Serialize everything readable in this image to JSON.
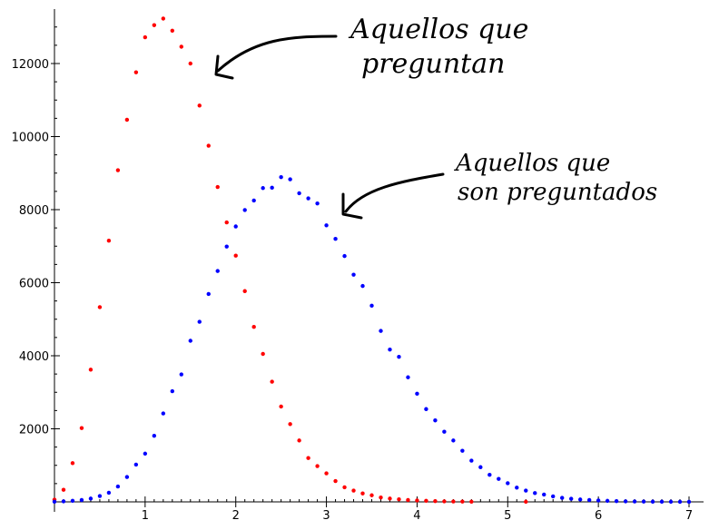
{
  "chart_data": {
    "type": "scatter",
    "title": "",
    "xlabel": "",
    "ylabel": "",
    "xlim": [
      -0.05,
      7.05
    ],
    "ylim": [
      0,
      13500
    ],
    "xticks": [
      "1",
      "2",
      "3",
      "4",
      "5",
      "6",
      "7"
    ],
    "yticks": [
      "2000",
      "4000",
      "6000",
      "8000",
      "10000",
      "12000"
    ],
    "grid": false,
    "series": [
      {
        "color": "#ff0000",
        "x": [
          0,
          0.1,
          0.2,
          0.3,
          0.4,
          0.5,
          0.6,
          0.7,
          0.8,
          0.9,
          1.0,
          1.1,
          1.2,
          1.3,
          1.4,
          1.5,
          1.6,
          1.7,
          1.8,
          1.9,
          2.0,
          2.1,
          2.2,
          2.3,
          2.4,
          2.5,
          2.6,
          2.7,
          2.8,
          2.9,
          3.0,
          3.1,
          3.2,
          3.3,
          3.4,
          3.5,
          3.6,
          3.7,
          3.8,
          3.9,
          4.0,
          4.1,
          4.2,
          4.3,
          4.4,
          4.5,
          4.6,
          5.2
        ],
        "y": [
          60,
          330,
          1060,
          2020,
          3620,
          5330,
          7150,
          9080,
          10460,
          11760,
          12720,
          13050,
          13230,
          12900,
          12460,
          12000,
          10850,
          9750,
          8620,
          7650,
          6740,
          5770,
          4790,
          4050,
          3290,
          2610,
          2130,
          1680,
          1200,
          980,
          780,
          570,
          400,
          310,
          230,
          180,
          120,
          90,
          70,
          50,
          40,
          30,
          20,
          15,
          10,
          8,
          5,
          3
        ]
      },
      {
        "color": "#0000ff",
        "x": [
          0,
          0.1,
          0.2,
          0.3,
          0.4,
          0.5,
          0.6,
          0.7,
          0.8,
          0.9,
          1.0,
          1.1,
          1.2,
          1.3,
          1.4,
          1.5,
          1.6,
          1.7,
          1.8,
          1.9,
          2.0,
          2.1,
          2.2,
          2.3,
          2.4,
          2.5,
          2.6,
          2.7,
          2.8,
          2.9,
          3.0,
          3.1,
          3.2,
          3.3,
          3.4,
          3.5,
          3.6,
          3.7,
          3.8,
          3.9,
          4.0,
          4.1,
          4.2,
          4.3,
          4.4,
          4.5,
          4.6,
          4.7,
          4.8,
          4.9,
          5.0,
          5.1,
          5.2,
          5.3,
          5.4,
          5.5,
          5.6,
          5.7,
          5.8,
          5.9,
          6.0,
          6.1,
          6.2,
          6.3,
          6.4,
          6.5,
          6.6,
          6.7,
          6.8,
          6.9,
          7.0
        ],
        "y": [
          5,
          15,
          30,
          50,
          90,
          160,
          250,
          420,
          680,
          1020,
          1320,
          1810,
          2420,
          3030,
          3490,
          4410,
          4930,
          5690,
          6320,
          6990,
          7540,
          7990,
          8250,
          8590,
          8600,
          8890,
          8830,
          8450,
          8310,
          8170,
          7570,
          7200,
          6730,
          6220,
          5910,
          5370,
          4680,
          4170,
          3970,
          3410,
          2960,
          2540,
          2230,
          1920,
          1680,
          1400,
          1130,
          950,
          740,
          630,
          510,
          390,
          310,
          240,
          200,
          150,
          110,
          85,
          65,
          50,
          38,
          28,
          20,
          15,
          11,
          8,
          6,
          4,
          3,
          2,
          1
        ]
      }
    ],
    "annotations": [
      {
        "text_line1": "Aquellos que",
        "text_line2": "preguntan"
      },
      {
        "text_line1": "Aquellos que",
        "text_line2": "son preguntados"
      }
    ]
  }
}
